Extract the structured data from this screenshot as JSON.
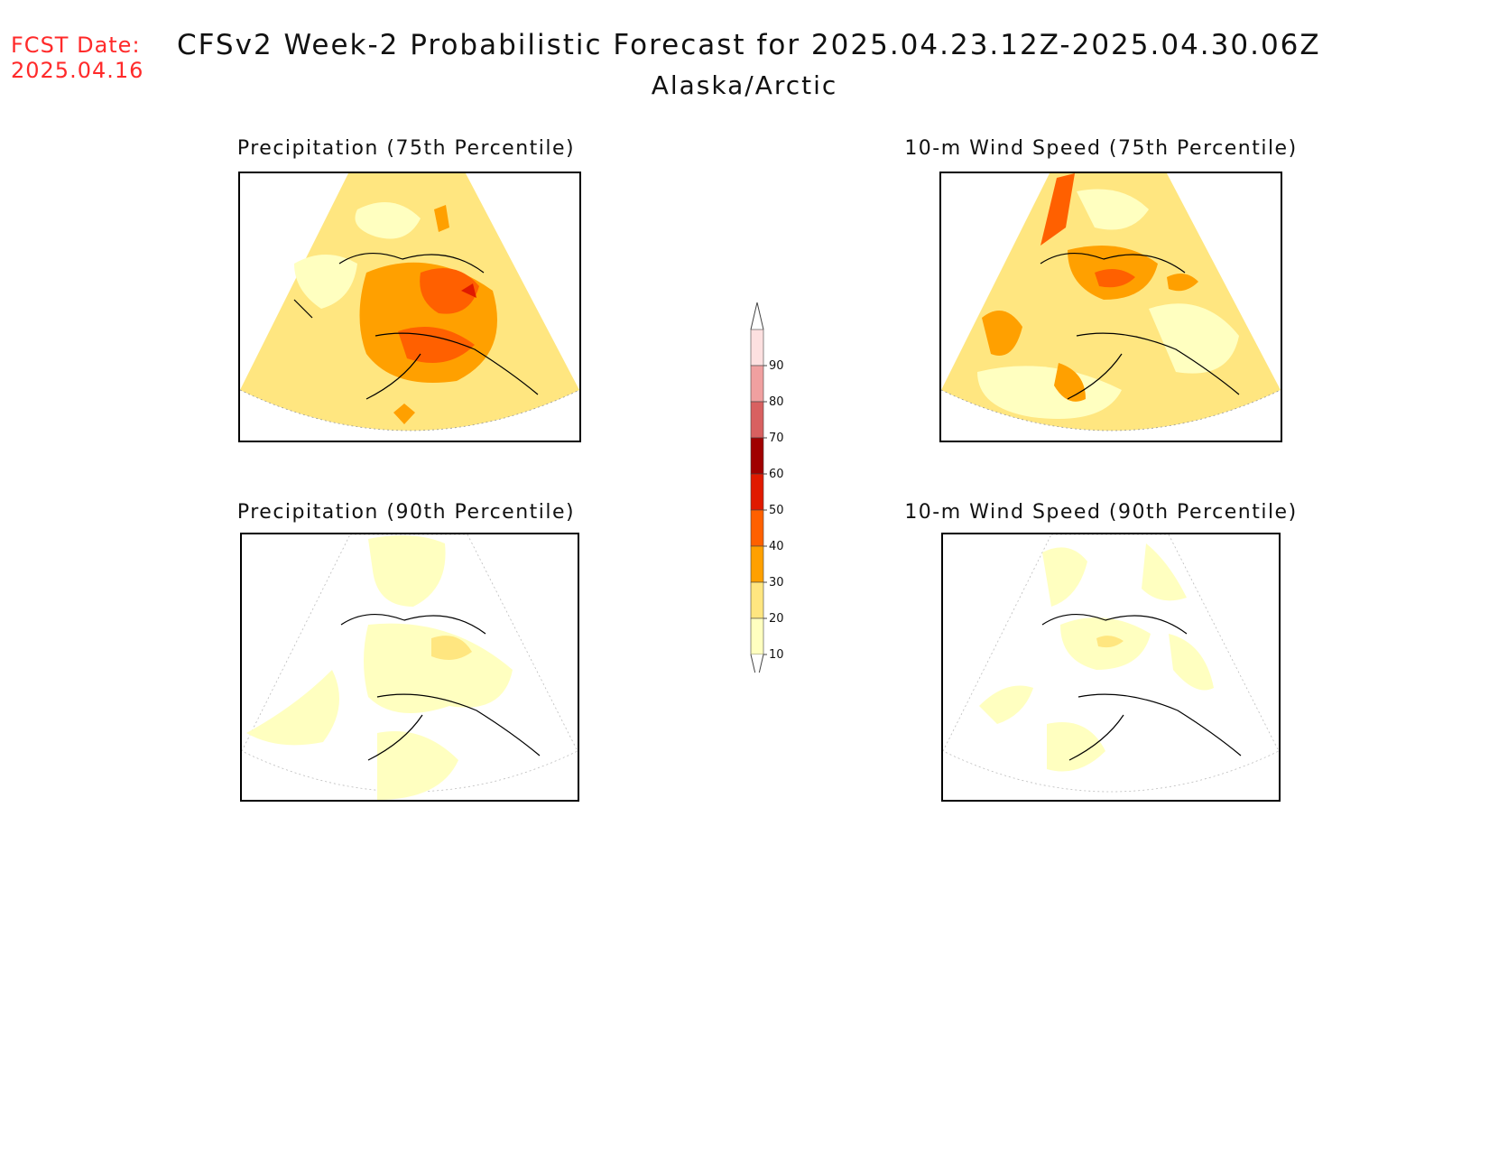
{
  "header": {
    "fcst_label": "FCST Date:",
    "fcst_date": "2025.04.16",
    "title": "CFSv2 Week-2 Probabilistic Forecast for 2025.04.23.12Z-2025.04.30.06Z",
    "subtitle": "Alaska/Arctic"
  },
  "panels": [
    {
      "title": "Precipitation (75th Percentile)"
    },
    {
      "title": "10-m Wind Speed (75th Percentile)"
    },
    {
      "title": "Precipitation (90th Percentile)"
    },
    {
      "title": "10-m Wind Speed (90th Percentile)"
    }
  ],
  "colorbar": {
    "levels": [
      "10",
      "20",
      "30",
      "40",
      "50",
      "60",
      "70",
      "80",
      "90"
    ],
    "colors": [
      "#ffffc0",
      "#ffe680",
      "#ffa000",
      "#ff6000",
      "#e01a00",
      "#a00000",
      "#d86060",
      "#f0a0a0",
      "#fde0e0"
    ]
  }
}
